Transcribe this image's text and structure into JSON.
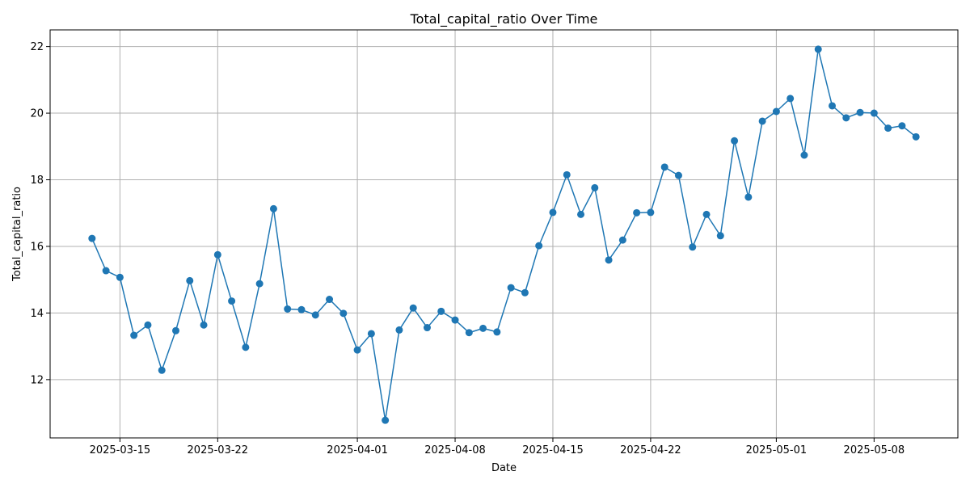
{
  "chart_data": {
    "type": "line",
    "title": "Total_capital_ratio Over Time",
    "xlabel": "Date",
    "ylabel": "Total_capital_ratio",
    "x_start": "2025-03-13",
    "xlim": [
      "2025-03-10",
      "2025-05-14"
    ],
    "ylim": [
      10.25,
      22.5
    ],
    "x_ticks": [
      "2025-03-15",
      "2025-03-22",
      "2025-04-01",
      "2025-04-08",
      "2025-04-15",
      "2025-04-22",
      "2025-05-01",
      "2025-05-08"
    ],
    "y_ticks": [
      12,
      14,
      16,
      18,
      20,
      22
    ],
    "grid": true,
    "marker": "circle",
    "colors": {
      "line": "#1f77b4",
      "grid": "#b0b0b0",
      "axes": "#000000"
    },
    "series": [
      {
        "values": [
          16.24,
          15.27,
          15.07,
          13.33,
          13.64,
          12.28,
          13.47,
          14.97,
          13.64,
          15.75,
          14.36,
          12.97,
          14.88,
          17.13,
          14.12,
          14.1,
          13.94,
          14.41,
          13.99,
          12.89,
          13.38,
          10.78,
          13.49,
          14.15,
          13.56,
          14.05,
          13.79,
          13.41,
          13.54,
          13.43,
          14.76,
          14.61,
          16.02,
          17.02,
          18.15,
          16.96,
          17.76,
          15.59,
          16.19,
          17.01,
          17.02,
          18.38,
          18.13,
          15.98,
          16.96,
          16.32,
          19.17,
          17.48,
          19.76,
          20.05,
          20.44,
          18.74,
          21.92,
          20.22,
          19.86,
          20.02,
          20.0,
          19.55,
          19.62,
          19.29
        ]
      }
    ]
  }
}
